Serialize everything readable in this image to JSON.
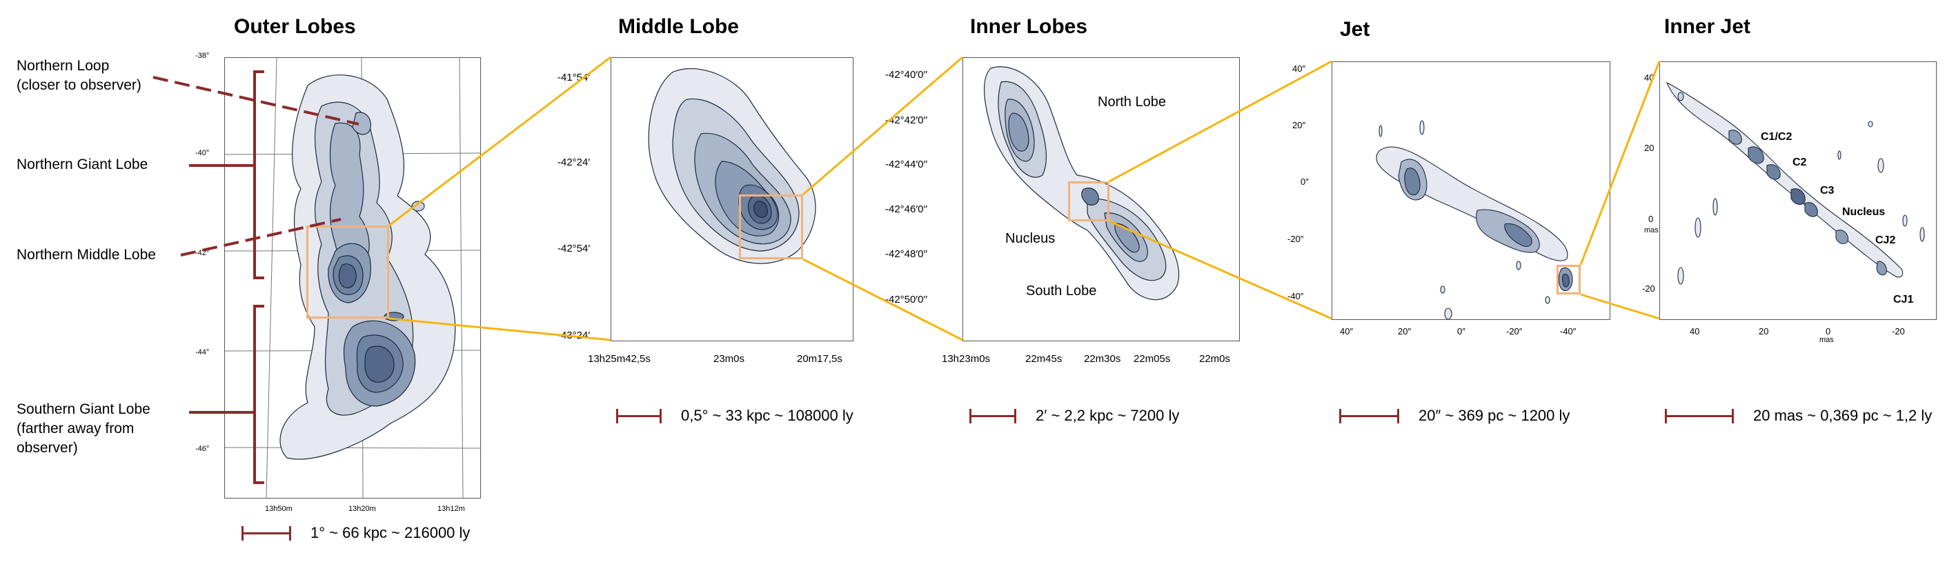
{
  "panels": {
    "outer": {
      "title": "Outer Lobes",
      "y_ticks": [
        "-38°",
        "-40°",
        "-42°",
        "-44°",
        "-46°"
      ],
      "x_ticks": [
        "13h50m",
        "13h20m",
        "13h12m"
      ],
      "scale_label": "1° ~ 66 kpc ~ 216000 ly"
    },
    "middle": {
      "title": "Middle Lobe",
      "y_ticks": [
        "-41°54′",
        "-42°24′",
        "-42°54′",
        "-43°24′"
      ],
      "x_ticks": [
        "13h25m42,5s",
        "23m0s",
        "20m17,5s"
      ],
      "scale_label": "0,5° ~ 33 kpc ~ 108000 ly"
    },
    "inner": {
      "title": "Inner Lobes",
      "y_ticks": [
        "-42°40′0′′",
        "-42°42′0′′",
        "-42°44′0′′",
        "-42°46′0′′",
        "-42°48′0′′",
        "-42°50′0′′"
      ],
      "x_ticks": [
        "13h23m0s",
        "22m45s",
        "22m30s",
        "22m05s",
        "22m0s"
      ],
      "labels": {
        "north": "North Lobe",
        "nucleus": "Nucleus",
        "south": "South Lobe"
      },
      "scale_label": "2′ ~ 2,2 kpc ~ 7200 ly"
    },
    "jet": {
      "title": "Jet",
      "y_ticks": [
        "40″",
        "20″",
        "0″",
        "-20″",
        "-40″"
      ],
      "x_ticks": [
        "40″",
        "20″",
        "0″",
        "-20″",
        "-40″"
      ],
      "scale_label": "20″ ~ 369 pc ~ 1200 ly"
    },
    "innerjet": {
      "title": "Inner Jet",
      "y_ticks": [
        "40",
        "20",
        "0",
        "mas",
        "-20"
      ],
      "x_ticks": [
        "40",
        "20",
        "0",
        "mas",
        "-20"
      ],
      "labels": {
        "c1c2": "C1/C2",
        "c2": "C2",
        "c3": "C3",
        "nucleus": "Nucleus",
        "cj2": "CJ2",
        "cj1": "CJ1"
      },
      "scale_label": "20 mas ~ 0,369 pc ~ 1,2 ly"
    }
  },
  "side_labels": {
    "northern_loop": "Northern Loop",
    "northern_loop_sub": "(closer to observer)",
    "northern_giant": "Northern Giant Lobe",
    "northern_middle": "Northern Middle Lobe",
    "southern_giant": "Southern Giant Lobe",
    "southern_giant_sub1": "(farther away from",
    "southern_giant_sub2": "observer)"
  },
  "colors": {
    "contour_fill": [
      "#e6e9ef",
      "#c9d1de",
      "#aab7cb",
      "#8c9db7",
      "#6e83a2",
      "#53688a"
    ],
    "contour_stroke": "#1e2a3c",
    "zoom_line": "#f5b50f",
    "highlight_box": "#f2b27a",
    "bracket": "#8b2a2a"
  }
}
